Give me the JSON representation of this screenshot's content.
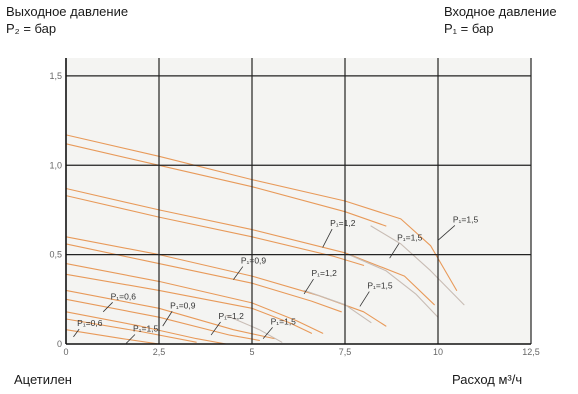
{
  "header": {
    "outlet_title": "Выходное давление",
    "outlet_unit": "P₂ = бар",
    "inlet_title": "Входное давление",
    "inlet_unit": "P₁ = бар"
  },
  "footer": {
    "gas_name": "Ацетилен",
    "x_axis_label": "Расход м³/ч"
  },
  "colors": {
    "plot_background": "#f4f4f2",
    "grid": "#222222",
    "curve": "#e89a5a",
    "curve_alt": "#c8bcb4"
  },
  "chart_data": {
    "type": "line",
    "title": "",
    "xlabel": "Расход м³/ч",
    "ylabel": "Выходное давление P₂ = бар",
    "xlim": [
      0,
      12.5
    ],
    "ylim": [
      0,
      1.6
    ],
    "x_ticks": [
      {
        "value": 0,
        "label": "0"
      },
      {
        "value": 2.5,
        "label": "2,5"
      },
      {
        "value": 5,
        "label": "5"
      },
      {
        "value": 7.5,
        "label": "7,5"
      },
      {
        "value": 10,
        "label": "10"
      },
      {
        "value": 12.5,
        "label": "12,5"
      }
    ],
    "y_ticks": [
      {
        "value": 0,
        "label": "0"
      },
      {
        "value": 0.5,
        "label": "0,5"
      },
      {
        "value": 1.0,
        "label": "1,0"
      },
      {
        "value": 1.5,
        "label": "1,5"
      }
    ],
    "grid": true,
    "series": [
      {
        "name": "",
        "style": "main",
        "points": [
          [
            0,
            1.17
          ],
          [
            2.5,
            1.05
          ],
          [
            5,
            0.92
          ],
          [
            7.5,
            0.8
          ],
          [
            9.0,
            0.7
          ],
          [
            9.8,
            0.55
          ],
          [
            10.5,
            0.3
          ]
        ]
      },
      {
        "name": "",
        "style": "main",
        "points": [
          [
            0,
            1.12
          ],
          [
            2.5,
            1.0
          ],
          [
            5,
            0.88
          ],
          [
            7.5,
            0.74
          ],
          [
            8.6,
            0.66
          ]
        ]
      },
      {
        "name": "",
        "style": "main",
        "points": [
          [
            0,
            0.87
          ],
          [
            2.5,
            0.75
          ],
          [
            5,
            0.64
          ],
          [
            7.5,
            0.51
          ],
          [
            9.1,
            0.38
          ],
          [
            9.9,
            0.22
          ]
        ]
      },
      {
        "name": "",
        "style": "main",
        "points": [
          [
            0,
            0.83
          ],
          [
            2.5,
            0.71
          ],
          [
            5,
            0.6
          ],
          [
            7.2,
            0.49
          ],
          [
            8.0,
            0.44
          ]
        ]
      },
      {
        "name": "",
        "style": "main",
        "points": [
          [
            0,
            0.6
          ],
          [
            2.5,
            0.5
          ],
          [
            5,
            0.38
          ],
          [
            6.8,
            0.27
          ],
          [
            8.0,
            0.18
          ],
          [
            8.6,
            0.1
          ]
        ]
      },
      {
        "name": "",
        "style": "main",
        "points": [
          [
            0,
            0.56
          ],
          [
            2.5,
            0.45
          ],
          [
            5,
            0.34
          ],
          [
            6.6,
            0.24
          ],
          [
            7.4,
            0.18
          ]
        ]
      },
      {
        "name": "",
        "style": "main",
        "points": [
          [
            0,
            0.45
          ],
          [
            2.5,
            0.35
          ],
          [
            5,
            0.23
          ],
          [
            6.2,
            0.13
          ],
          [
            6.9,
            0.06
          ]
        ]
      },
      {
        "name": "",
        "style": "main",
        "points": [
          [
            0,
            0.39
          ],
          [
            2.5,
            0.3
          ],
          [
            5,
            0.2
          ],
          [
            6.0,
            0.12
          ],
          [
            6.6,
            0.06
          ]
        ]
      },
      {
        "name": "",
        "style": "main",
        "points": [
          [
            0,
            0.3
          ],
          [
            2.5,
            0.2
          ],
          [
            4.5,
            0.08
          ],
          [
            5.6,
            0.03
          ]
        ]
      },
      {
        "name": "",
        "style": "main",
        "points": [
          [
            0,
            0.25
          ],
          [
            2.5,
            0.15
          ],
          [
            4.4,
            0.05
          ],
          [
            5.2,
            0.02
          ]
        ]
      },
      {
        "name": "",
        "style": "main",
        "points": [
          [
            0,
            0.18
          ],
          [
            2.0,
            0.1
          ],
          [
            3.5,
            0.03
          ],
          [
            4.3,
            0.0
          ]
        ]
      },
      {
        "name": "",
        "style": "main",
        "points": [
          [
            0,
            0.14
          ],
          [
            2.0,
            0.07
          ],
          [
            3.5,
            0.01
          ]
        ]
      },
      {
        "name": "",
        "style": "main",
        "points": [
          [
            0,
            0.08
          ],
          [
            1.5,
            0.03
          ],
          [
            2.5,
            0.0
          ]
        ]
      },
      {
        "name": "",
        "style": "alt",
        "points": [
          [
            8.2,
            0.66
          ],
          [
            9.0,
            0.56
          ],
          [
            9.8,
            0.41
          ],
          [
            10.7,
            0.22
          ]
        ]
      },
      {
        "name": "",
        "style": "alt",
        "points": [
          [
            7.6,
            0.5
          ],
          [
            8.6,
            0.41
          ],
          [
            9.4,
            0.28
          ],
          [
            10.0,
            0.15
          ]
        ]
      },
      {
        "name": "",
        "style": "alt",
        "points": [
          [
            6.4,
            0.3
          ],
          [
            7.5,
            0.22
          ],
          [
            8.2,
            0.12
          ]
        ]
      },
      {
        "name": "",
        "style": "alt",
        "points": [
          [
            4.3,
            0.16
          ],
          [
            5.2,
            0.08
          ],
          [
            5.8,
            0.01
          ]
        ]
      }
    ],
    "annotations": [
      {
        "text": "P₁=1,2",
        "x": 7.1,
        "y": 0.66,
        "pointer": [
          6.9,
          0.54
        ]
      },
      {
        "text": "P₁=1,5",
        "x": 8.9,
        "y": 0.58,
        "pointer": [
          8.7,
          0.48
        ]
      },
      {
        "text": "P₁=1,5",
        "x": 10.4,
        "y": 0.68,
        "pointer": [
          10.0,
          0.58
        ]
      },
      {
        "text": "P₁=0,9",
        "x": 4.7,
        "y": 0.45,
        "pointer": [
          4.5,
          0.36
        ]
      },
      {
        "text": "P₁=1,2",
        "x": 6.6,
        "y": 0.38,
        "pointer": [
          6.4,
          0.28
        ]
      },
      {
        "text": "P₁=1,5",
        "x": 8.1,
        "y": 0.31,
        "pointer": [
          7.9,
          0.21
        ]
      },
      {
        "text": "P₁=0,6",
        "x": 1.2,
        "y": 0.25,
        "pointer": [
          1.0,
          0.18
        ]
      },
      {
        "text": "P₁=0,9",
        "x": 2.8,
        "y": 0.2,
        "pointer": [
          2.6,
          0.1
        ]
      },
      {
        "text": "P₁=1,2",
        "x": 4.1,
        "y": 0.14,
        "pointer": [
          3.9,
          0.05
        ]
      },
      {
        "text": "P₁=1,5",
        "x": 5.5,
        "y": 0.11,
        "pointer": [
          5.3,
          0.03
        ]
      },
      {
        "text": "P₁=0,6",
        "x": 0.3,
        "y": 0.1,
        "pointer": [
          0.2,
          0.04
        ]
      },
      {
        "text": "P₁=1,5",
        "x": 1.8,
        "y": 0.07,
        "pointer": [
          1.6,
          0.0
        ]
      }
    ]
  }
}
